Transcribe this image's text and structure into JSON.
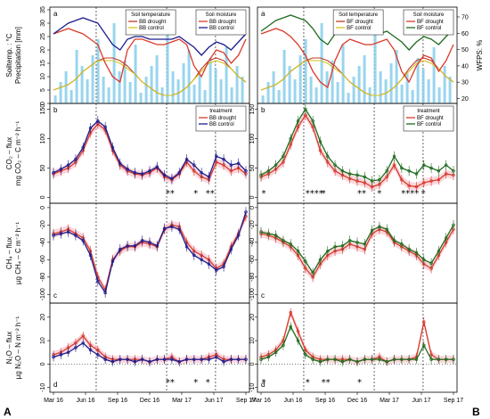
{
  "corner_labels": {
    "left": "A",
    "right": "B"
  },
  "colors": {
    "precip": "#87ceeb",
    "drought_temp": "#c0392b",
    "control_temp": "#d4c21a",
    "bb_control": "#1c1c8c",
    "bf_control": "#1e6b1e",
    "drought": "#d93a2b",
    "band": "#f4b6c2",
    "grid": "#000000"
  },
  "chart_data": [
    {
      "type": "line",
      "panel": "a",
      "column": "A",
      "ylabel": "Soiltemp. : °C\nPrecipitation [mm]",
      "yticks": [
        0,
        5,
        10,
        15,
        20,
        25,
        30,
        35
      ],
      "ylim": [
        0,
        36
      ],
      "x_ticks": [
        "Mar 16",
        "Jun 16",
        "Sep 16",
        "Dec 16",
        "Mar 17",
        "Jun 17",
        "Sep 17"
      ],
      "legends": [
        {
          "title": "Soil temperature",
          "entries": [
            "BB drought",
            "BB control"
          ],
          "colors": [
            "#c0392b",
            "#d4c21a"
          ],
          "placement": "top-center"
        },
        {
          "title": "Soil moisture",
          "entries": [
            "BB drought",
            "BB control"
          ],
          "colors": [
            "#d93a2b",
            "#1c1c8c"
          ],
          "placement": "top-right"
        }
      ],
      "series": [
        {
          "name": "BB drought",
          "kind": "temperature",
          "values": [
            5,
            6,
            7,
            9,
            12,
            14,
            16,
            17,
            17,
            16,
            14,
            11,
            8,
            6,
            4,
            3,
            3,
            4,
            6,
            9,
            13,
            16,
            17,
            16,
            13,
            10,
            8
          ]
        },
        {
          "name": "BB control",
          "kind": "temperature",
          "values": [
            5,
            6,
            7,
            9,
            12,
            14,
            16,
            16,
            16,
            15,
            13,
            11,
            8,
            6,
            4,
            3,
            3,
            4,
            6,
            9,
            12,
            15,
            16,
            15,
            13,
            10,
            8
          ]
        },
        {
          "name": "BB drought",
          "kind": "moisture",
          "values": [
            26,
            27,
            28,
            27,
            26,
            24,
            22,
            15,
            10,
            8,
            20,
            24,
            24,
            23,
            22,
            22,
            23,
            24,
            22,
            14,
            10,
            16,
            20,
            19,
            15,
            18,
            24
          ]
        },
        {
          "name": "BB control",
          "kind": "moisture",
          "values": [
            26,
            28,
            30,
            31,
            32,
            31,
            30,
            26,
            22,
            20,
            24,
            25,
            25,
            24,
            24,
            24,
            24,
            25,
            23,
            21,
            18,
            21,
            23,
            22,
            20,
            23,
            26
          ]
        }
      ],
      "precip": [
        3,
        8,
        12,
        5,
        20,
        14,
        9,
        18,
        24,
        10,
        6,
        30,
        12,
        16,
        8,
        22,
        4,
        10,
        14,
        18,
        6,
        26,
        12,
        9,
        15,
        20,
        7,
        11,
        5,
        17,
        13,
        9,
        21,
        6,
        14,
        10
      ]
    },
    {
      "type": "line",
      "panel": "b",
      "column": "A",
      "ylabel": "CO₂ – flux\nmg CO₂ – C m⁻² h⁻¹",
      "yticks": [
        0,
        50,
        100,
        150
      ],
      "ylim": [
        -10,
        160
      ],
      "legends": [
        {
          "title": "treatment",
          "entries": [
            "BB drought",
            "BB control"
          ],
          "colors": [
            "#d93a2b",
            "#1c1c8c"
          ],
          "placement": "top-right"
        }
      ],
      "series": [
        {
          "name": "BB drought",
          "values": [
            40,
            45,
            50,
            60,
            80,
            110,
            125,
            115,
            80,
            55,
            45,
            40,
            38,
            42,
            50,
            35,
            30,
            40,
            60,
            45,
            35,
            30,
            60,
            55,
            45,
            50,
            40
          ]
        },
        {
          "name": "BB control",
          "values": [
            42,
            48,
            55,
            65,
            85,
            118,
            130,
            120,
            85,
            58,
            48,
            42,
            40,
            45,
            52,
            38,
            32,
            42,
            65,
            55,
            42,
            35,
            70,
            65,
            55,
            58,
            45
          ]
        }
      ],
      "significance": [
        "**",
        "*",
        "**"
      ]
    },
    {
      "type": "line",
      "panel": "c",
      "column": "A",
      "ylabel": "CH₄ – flux\nµg CH₄ – C m⁻² h⁻¹",
      "yticks": [
        0,
        -20,
        -40,
        -60,
        -80,
        -100
      ],
      "ylim": [
        -110,
        5
      ],
      "series": [
        {
          "name": "BB drought",
          "values": [
            -30,
            -28,
            -25,
            -30,
            -35,
            -50,
            -80,
            -95,
            -60,
            -50,
            -45,
            -45,
            -40,
            -42,
            -45,
            -25,
            -20,
            -22,
            -40,
            -50,
            -55,
            -60,
            -70,
            -65,
            -45,
            -30,
            -10
          ]
        },
        {
          "name": "BB control",
          "values": [
            -32,
            -30,
            -28,
            -32,
            -38,
            -55,
            -85,
            -98,
            -62,
            -48,
            -44,
            -44,
            -38,
            -40,
            -44,
            -24,
            -22,
            -25,
            -45,
            -55,
            -60,
            -65,
            -72,
            -68,
            -48,
            -32,
            -5
          ]
        }
      ]
    },
    {
      "type": "line",
      "panel": "d",
      "column": "A",
      "ylabel": "N₂O – flux\nµg N₂O – N m⁻² h⁻¹",
      "yticks": [
        -10,
        0,
        10,
        20
      ],
      "ylim": [
        -12,
        26
      ],
      "series": [
        {
          "name": "BB drought",
          "values": [
            4,
            5,
            7,
            9,
            12,
            8,
            6,
            3,
            2,
            2,
            2,
            2,
            2,
            1,
            2,
            2,
            3,
            1,
            2,
            2,
            2,
            3,
            4,
            2,
            2,
            2,
            2
          ]
        },
        {
          "name": "BB control",
          "values": [
            3,
            4,
            5,
            7,
            9,
            6,
            4,
            2,
            1,
            2,
            2,
            1,
            2,
            1,
            2,
            2,
            2,
            1,
            2,
            2,
            2,
            2,
            3,
            1,
            2,
            2,
            2
          ]
        }
      ],
      "significance": [
        "**",
        "*",
        "*"
      ]
    },
    {
      "type": "line",
      "panel": "a",
      "column": "B",
      "ylabel": "WFPS: %",
      "yticks_right": [
        20,
        30,
        40,
        50,
        60,
        70
      ],
      "ylim": [
        0,
        36
      ],
      "x_ticks": [
        "Mar 16",
        "Jun 16",
        "Sep 16",
        "Dec 16",
        "Mar 17",
        "Jun 17",
        "Sep 17"
      ],
      "legends": [
        {
          "title": "Soil temperature",
          "entries": [
            "BF drought",
            "BF control"
          ],
          "colors": [
            "#c0392b",
            "#d4c21a"
          ],
          "placement": "top-center"
        },
        {
          "title": "Soil moisture",
          "entries": [
            "BF drought",
            "BF control"
          ],
          "colors": [
            "#d93a2b",
            "#1e6b1e"
          ],
          "placement": "top-right"
        }
      ],
      "series": [
        {
          "name": "BF drought",
          "kind": "temperature",
          "values": [
            5,
            6,
            7,
            9,
            12,
            14,
            16,
            17,
            17,
            16,
            14,
            11,
            8,
            6,
            4,
            3,
            3,
            4,
            6,
            9,
            13,
            16,
            17,
            16,
            13,
            10,
            8
          ]
        },
        {
          "name": "BF control",
          "kind": "temperature",
          "values": [
            5,
            6,
            7,
            9,
            12,
            14,
            16,
            16,
            16,
            15,
            13,
            11,
            8,
            6,
            4,
            3,
            3,
            4,
            6,
            9,
            12,
            15,
            16,
            15,
            13,
            10,
            8
          ]
        },
        {
          "name": "BF drought",
          "kind": "moisture",
          "values": [
            26,
            27,
            28,
            27,
            25,
            22,
            18,
            12,
            8,
            6,
            16,
            22,
            24,
            23,
            22,
            22,
            23,
            24,
            20,
            12,
            8,
            14,
            18,
            17,
            12,
            16,
            22
          ]
        },
        {
          "name": "BF control",
          "kind": "moisture",
          "values": [
            27,
            29,
            31,
            32,
            33,
            32,
            31,
            28,
            24,
            22,
            26,
            27,
            27,
            26,
            26,
            26,
            26,
            27,
            25,
            23,
            20,
            23,
            25,
            24,
            22,
            25,
            28
          ]
        }
      ],
      "precip": [
        3,
        8,
        12,
        5,
        20,
        14,
        9,
        18,
        24,
        10,
        6,
        30,
        12,
        16,
        8,
        22,
        4,
        10,
        14,
        18,
        6,
        26,
        12,
        9,
        15,
        20,
        7,
        11,
        5,
        17,
        13,
        9,
        21,
        6,
        14,
        10
      ]
    },
    {
      "type": "line",
      "panel": "b",
      "column": "B",
      "yticks": [
        0,
        50,
        100,
        150
      ],
      "ylim": [
        -10,
        160
      ],
      "legends": [
        {
          "title": "treatment",
          "entries": [
            "BF drought",
            "BF control"
          ],
          "colors": [
            "#d93a2b",
            "#1e6b1e"
          ],
          "placement": "top-right"
        }
      ],
      "series": [
        {
          "name": "BF drought",
          "values": [
            35,
            40,
            48,
            60,
            90,
            120,
            140,
            120,
            80,
            60,
            45,
            38,
            32,
            28,
            25,
            18,
            22,
            35,
            55,
            30,
            20,
            18,
            25,
            28,
            30,
            40,
            38
          ]
        },
        {
          "name": "BF control",
          "values": [
            38,
            45,
            55,
            70,
            100,
            130,
            150,
            130,
            95,
            70,
            55,
            45,
            40,
            38,
            35,
            28,
            30,
            45,
            70,
            50,
            45,
            40,
            55,
            50,
            45,
            55,
            45
          ]
        }
      ],
      "significance": [
        "*",
        "****",
        "*",
        "**",
        "*",
        "****",
        "*"
      ]
    },
    {
      "type": "line",
      "panel": "c",
      "column": "B",
      "yticks": [
        0,
        -20,
        -40,
        -60,
        -80,
        -100
      ],
      "ylim": [
        -110,
        5
      ],
      "series": [
        {
          "name": "BF drought",
          "values": [
            -30,
            -32,
            -35,
            -40,
            -45,
            -55,
            -70,
            -80,
            -65,
            -55,
            -50,
            -48,
            -42,
            -45,
            -48,
            -30,
            -25,
            -28,
            -40,
            -45,
            -50,
            -55,
            -65,
            -70,
            -55,
            -40,
            -25
          ]
        },
        {
          "name": "BF control",
          "values": [
            -28,
            -30,
            -32,
            -38,
            -42,
            -50,
            -62,
            -75,
            -60,
            -50,
            -45,
            -44,
            -38,
            -40,
            -42,
            -26,
            -22,
            -25,
            -38,
            -42,
            -48,
            -52,
            -60,
            -64,
            -50,
            -35,
            -20
          ]
        }
      ]
    },
    {
      "type": "line",
      "panel": "d",
      "column": "B",
      "yticks": [
        -10,
        0,
        10,
        20
      ],
      "ylim": [
        -12,
        26
      ],
      "series": [
        {
          "name": "BF drought",
          "values": [
            3,
            4,
            6,
            10,
            22,
            14,
            6,
            3,
            2,
            2,
            2,
            2,
            2,
            1,
            2,
            2,
            3,
            1,
            2,
            2,
            2,
            3,
            18,
            4,
            2,
            2,
            2
          ]
        },
        {
          "name": "BF control",
          "values": [
            2,
            3,
            5,
            8,
            16,
            10,
            4,
            2,
            1,
            2,
            2,
            1,
            2,
            1,
            2,
            2,
            2,
            1,
            2,
            2,
            2,
            2,
            8,
            2,
            2,
            2,
            2
          ]
        }
      ],
      "significance": [
        "*",
        "*",
        "**",
        "*"
      ]
    }
  ]
}
